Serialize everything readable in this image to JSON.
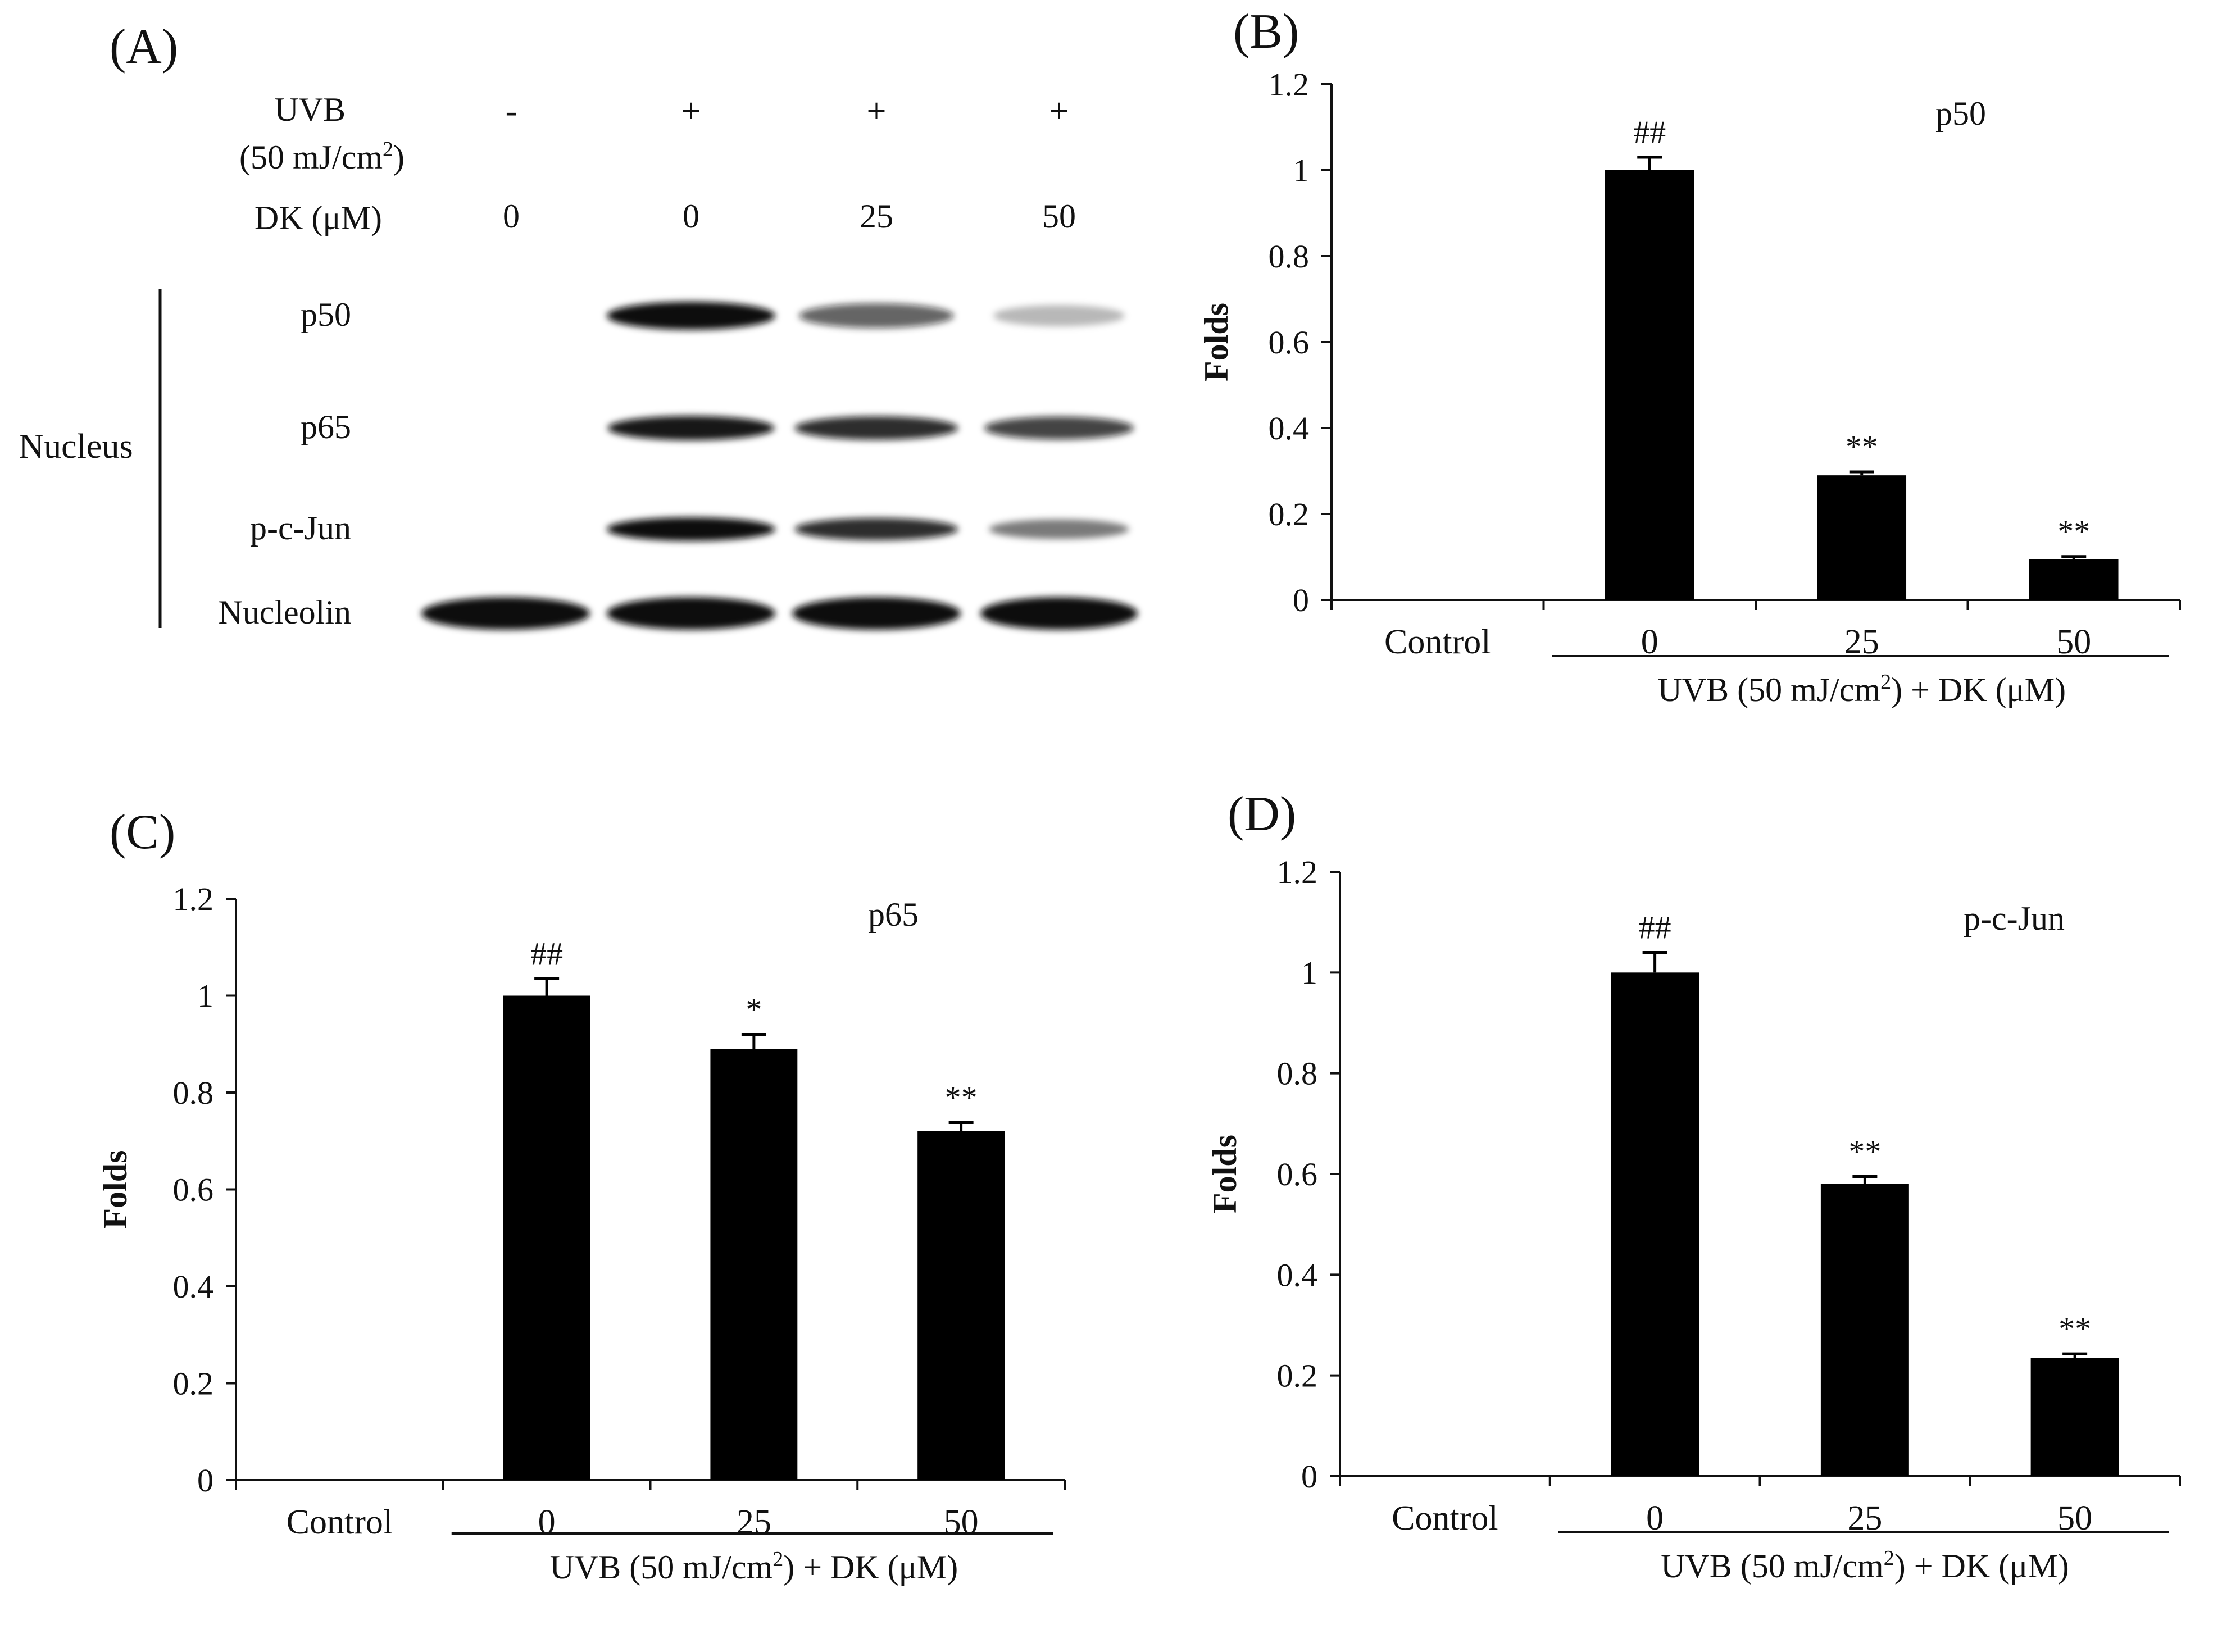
{
  "panel_a": {
    "label": "(A)",
    "row_labels": {
      "uvb": "UVB",
      "uvb_dose_main": "(50 mJ/cm",
      "uvb_dose_sup": "2",
      "uvb_dose_end": ")",
      "dk": "DK (μM)"
    },
    "uvb_values": [
      "-",
      "+",
      "+",
      "+"
    ],
    "dk_values": [
      "0",
      "0",
      "25",
      "50"
    ],
    "compartment": "Nucleus",
    "bands": [
      {
        "name": "p50",
        "intensities": [
          0,
          1.0,
          0.6,
          0.18
        ]
      },
      {
        "name": "p65",
        "intensities": [
          0,
          0.95,
          0.85,
          0.75
        ]
      },
      {
        "name": "p-c-Jun",
        "intensities": [
          0,
          1.0,
          0.85,
          0.45
        ]
      },
      {
        "name": "Nucleolin",
        "intensities": [
          1.0,
          1.0,
          1.0,
          1.0
        ]
      }
    ]
  },
  "chart_data": [
    {
      "id": "B",
      "panel_label": "(B)",
      "type": "bar",
      "title": "p50",
      "ylabel": "Folds",
      "xlabel": "",
      "categories": [
        "Control",
        "0",
        "25",
        "50"
      ],
      "values": [
        0,
        1.0,
        0.29,
        0.095
      ],
      "errors": [
        0,
        0.03,
        0.008,
        0.006
      ],
      "annotations": [
        "",
        "##",
        "**",
        "**"
      ],
      "ylim": [
        0,
        1.2
      ],
      "yticks": [
        "0",
        "0.2",
        "0.4",
        "0.6",
        "0.8",
        "1",
        "1.2"
      ],
      "group_label_main": "UVB (50 mJ/cm",
      "group_label_sup": "2",
      "group_label_end": ")  + DK (μM)"
    },
    {
      "id": "C",
      "panel_label": "(C)",
      "type": "bar",
      "title": "p65",
      "ylabel": "Folds",
      "xlabel": "",
      "categories": [
        "Control",
        "0",
        "25",
        "50"
      ],
      "values": [
        0,
        1.0,
        0.89,
        0.72
      ],
      "errors": [
        0,
        0.035,
        0.03,
        0.018
      ],
      "annotations": [
        "",
        "##",
        "*",
        "**"
      ],
      "ylim": [
        0,
        1.2
      ],
      "yticks": [
        "0",
        "0.2",
        "0.4",
        "0.6",
        "0.8",
        "1",
        "1.2"
      ],
      "group_label_main": "UVB (50 mJ/cm",
      "group_label_sup": "2",
      "group_label_end": ")  + DK (μM)"
    },
    {
      "id": "D",
      "panel_label": "(D)",
      "type": "bar",
      "title": "p-c-Jun",
      "ylabel": "Folds",
      "xlabel": "",
      "categories": [
        "Control",
        "0",
        "25",
        "50"
      ],
      "values": [
        0,
        1.0,
        0.58,
        0.235
      ],
      "errors": [
        0,
        0.04,
        0.015,
        0.008
      ],
      "annotations": [
        "",
        "##",
        "**",
        "**"
      ],
      "ylim": [
        0,
        1.2
      ],
      "yticks": [
        "0",
        "0.2",
        "0.4",
        "0.6",
        "0.8",
        "1",
        "1.2"
      ],
      "group_label_main": "UVB (50 mJ/cm",
      "group_label_sup": "2",
      "group_label_end": ")  + DK (μM)"
    }
  ]
}
